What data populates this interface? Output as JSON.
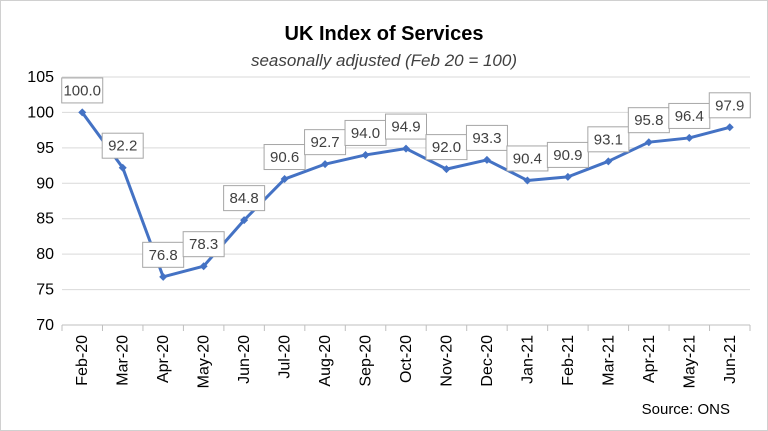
{
  "chart_data": {
    "type": "line",
    "title": "UK Index of Services",
    "subtitle": "seasonally adjusted (Feb 20 = 100)",
    "xlabel": "",
    "ylabel": "",
    "categories": [
      "Feb-20",
      "Mar-20",
      "Apr-20",
      "May-20",
      "Jun-20",
      "Jul-20",
      "Aug-20",
      "Sep-20",
      "Oct-20",
      "Nov-20",
      "Dec-20",
      "Jan-21",
      "Feb-21",
      "Mar-21",
      "Apr-21",
      "May-21",
      "Jun-21"
    ],
    "values": [
      100.0,
      92.2,
      76.8,
      78.3,
      84.8,
      90.6,
      92.7,
      94.0,
      94.9,
      92.0,
      93.3,
      90.4,
      90.9,
      93.1,
      95.8,
      96.4,
      97.9
    ],
    "data_labels": [
      "100.0",
      "92.2",
      "76.8",
      "78.3",
      "84.8",
      "90.6",
      "92.7",
      "94.0",
      "94.9",
      "92.0",
      "93.3",
      "90.4",
      "90.9",
      "93.1",
      "95.8",
      "96.4",
      "97.9"
    ],
    "ylim": [
      70,
      105
    ],
    "yticks": [
      70,
      75,
      80,
      85,
      90,
      95,
      100,
      105
    ],
    "grid": true,
    "legend": "none",
    "line_color": "#4472c4",
    "source": "Source: ONS"
  }
}
